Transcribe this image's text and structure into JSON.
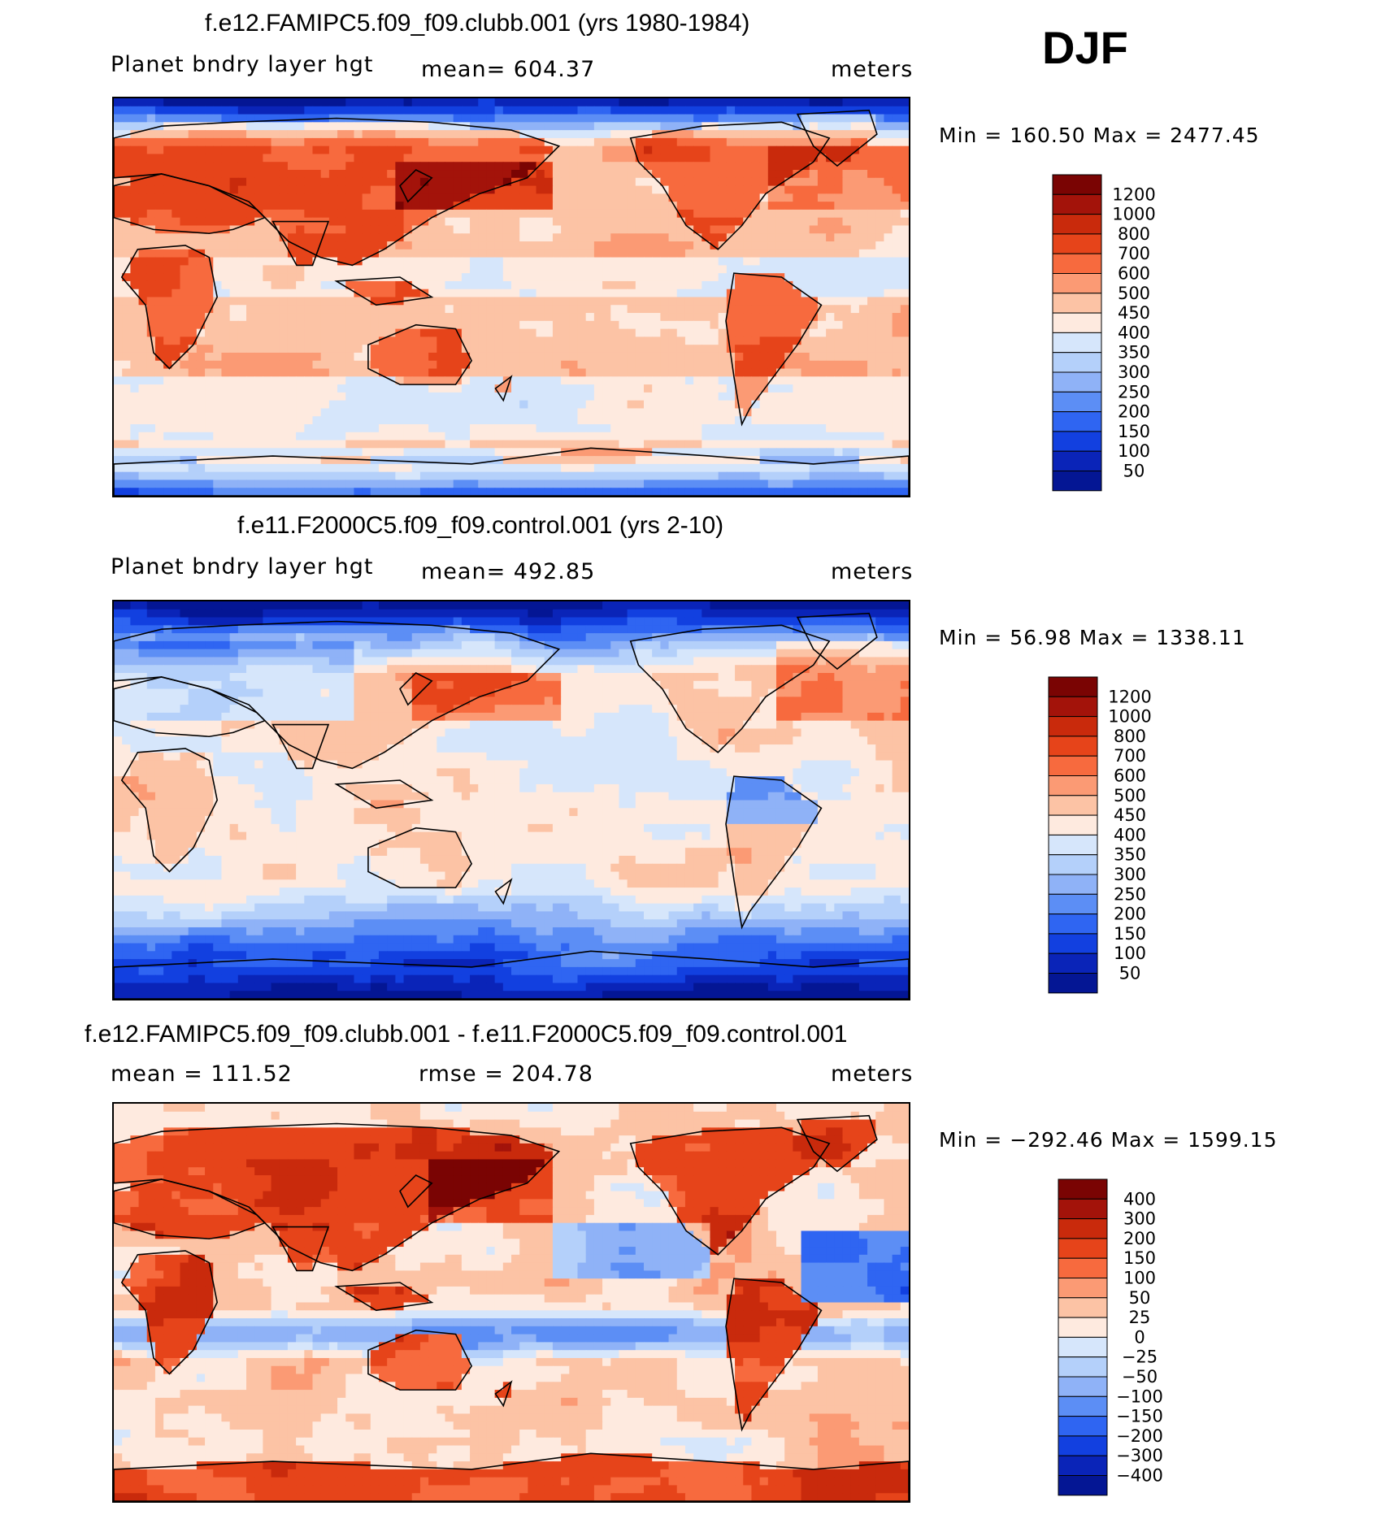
{
  "season": "DJF",
  "panels": [
    {
      "title": "f.e12.FAMIPC5.f09_f09.clubb.001 (yrs 1980-1984)",
      "left": "Planet bndry layer hgt",
      "middle": "mean= 604.37",
      "units": "meters",
      "minmax": "Min = 160.50 Max = 2477.45",
      "colorbar": {
        "labels": [
          "1200",
          "1000",
          "800",
          "700",
          "600",
          "500",
          "450",
          "400",
          "350",
          "300",
          "250",
          "200",
          "150",
          "100",
          "50"
        ],
        "colors": [
          "#7a0403",
          "#a3130a",
          "#c92a0c",
          "#e6441a",
          "#f76a3e",
          "#fb9a74",
          "#fcc3a5",
          "#feeadf",
          "#d6e6fb",
          "#b4d0fa",
          "#8fb2f7",
          "#5c8ef5",
          "#2f65f2",
          "#1240e0",
          "#0a24b8",
          "#041694"
        ]
      },
      "field": "ctl"
    },
    {
      "title": "f.e11.F2000C5.f09_f09.control.001 (yrs 2-10)",
      "left": "Planet bndry layer hgt",
      "middle": "mean= 492.85",
      "units": "meters",
      "minmax": "Min =  56.98 Max = 1338.11",
      "colorbar": {
        "labels": [
          "1200",
          "1000",
          "800",
          "700",
          "600",
          "500",
          "450",
          "400",
          "350",
          "300",
          "250",
          "200",
          "150",
          "100",
          "50"
        ],
        "colors": [
          "#7a0403",
          "#a3130a",
          "#c92a0c",
          "#e6441a",
          "#f76a3e",
          "#fb9a74",
          "#fcc3a5",
          "#feeadf",
          "#d6e6fb",
          "#b4d0fa",
          "#8fb2f7",
          "#5c8ef5",
          "#2f65f2",
          "#1240e0",
          "#0a24b8",
          "#041694"
        ]
      },
      "field": "ref"
    },
    {
      "title": "f.e12.FAMIPC5.f09_f09.clubb.001 - f.e11.F2000C5.f09_f09.control.001",
      "left": "mean = 111.52",
      "middle": "rmse = 204.78",
      "units": "meters",
      "minmax": "Min = −292.46 Max = 1599.15",
      "colorbar": {
        "labels": [
          "400",
          "300",
          "200",
          "150",
          "100",
          "50",
          "25",
          "0",
          "−25",
          "−50",
          "−100",
          "−150",
          "−200",
          "−300",
          "−400"
        ],
        "colors": [
          "#7a0403",
          "#a3130a",
          "#c92a0c",
          "#e6441a",
          "#f76a3e",
          "#fb9a74",
          "#fcc3a5",
          "#feeadf",
          "#d6e6fb",
          "#b4d0fa",
          "#8fb2f7",
          "#5c8ef5",
          "#2f65f2",
          "#1240e0",
          "#0a24b8",
          "#041694"
        ]
      },
      "field": "diff"
    }
  ],
  "chart_data": [
    {
      "type": "heatmap",
      "title": "f.e12.FAMIPC5.f09_f09.clubb.001 (yrs 1980-1984)",
      "variable": "Planet bndry layer hgt",
      "units": "meters",
      "mean": 604.37,
      "min": 160.5,
      "max": 2477.45,
      "levels": [
        50,
        100,
        150,
        200,
        250,
        300,
        350,
        400,
        450,
        500,
        600,
        700,
        800,
        1000,
        1200
      ]
    },
    {
      "type": "heatmap",
      "title": "f.e11.F2000C5.f09_f09.control.001 (yrs 2-10)",
      "variable": "Planet bndry layer hgt",
      "units": "meters",
      "mean": 492.85,
      "min": 56.98,
      "max": 1338.11,
      "levels": [
        50,
        100,
        150,
        200,
        250,
        300,
        350,
        400,
        450,
        500,
        600,
        700,
        800,
        1000,
        1200
      ]
    },
    {
      "type": "heatmap",
      "title": "f.e12.FAMIPC5.f09_f09.clubb.001 - f.e11.F2000C5.f09_f09.control.001",
      "units": "meters",
      "mean": 111.52,
      "rmse": 204.78,
      "min": -292.46,
      "max": 1599.15,
      "levels": [
        -400,
        -300,
        -200,
        -150,
        -100,
        -50,
        -25,
        0,
        25,
        50,
        100,
        150,
        200,
        300,
        400
      ]
    }
  ]
}
